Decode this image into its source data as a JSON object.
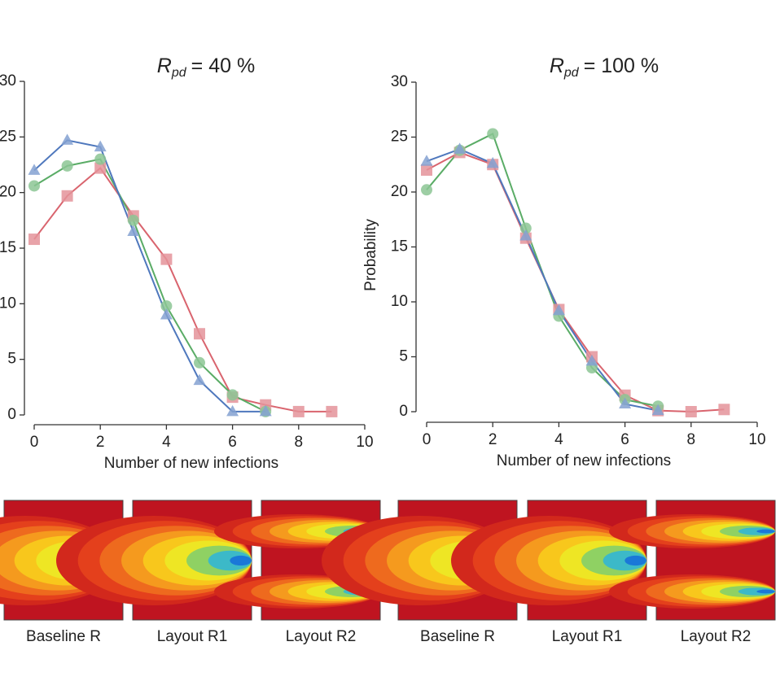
{
  "chart_data": [
    {
      "type": "line",
      "title": {
        "symbol": "R",
        "subscript": "pd",
        "rest": "= 40 %"
      },
      "xlabel": "Number of new infections",
      "xlim": [
        0,
        10
      ],
      "xticks": [
        0,
        2,
        4,
        6,
        8,
        10
      ],
      "ylim": [
        0,
        30
      ],
      "yticks": [
        0,
        5,
        10,
        15,
        20,
        25,
        30
      ],
      "series": [
        {
          "color": "#d9646e",
          "marker": "square",
          "x": [
            0,
            1,
            2,
            3,
            4,
            5,
            6,
            7,
            8,
            9
          ],
          "values": [
            15.8,
            19.7,
            22.2,
            17.9,
            14,
            7.3,
            1.6,
            0.9,
            0.3,
            0.3
          ]
        },
        {
          "color": "#5aac66",
          "marker": "circle",
          "x": [
            0,
            1,
            2,
            3,
            4,
            5,
            6,
            7
          ],
          "values": [
            20.6,
            22.4,
            23,
            17.5,
            9.8,
            4.7,
            1.8,
            0.3
          ]
        },
        {
          "color": "#4f78bd",
          "marker": "triangle",
          "x": [
            0,
            1,
            2,
            3,
            4,
            5,
            6,
            7
          ],
          "values": [
            22,
            24.7,
            24.1,
            16.5,
            9,
            3.1,
            0.3,
            0.3
          ]
        }
      ]
    },
    {
      "type": "line",
      "title": {
        "symbol": "R",
        "subscript": "pd",
        "rest": "= 100 %"
      },
      "xlabel": "Number of new infections",
      "ylabel": "Probability",
      "xlim": [
        0,
        10
      ],
      "xticks": [
        0,
        2,
        4,
        6,
        8,
        10
      ],
      "ylim": [
        0,
        30
      ],
      "yticks": [
        0,
        5,
        10,
        15,
        20,
        25,
        30
      ],
      "series": [
        {
          "color": "#d9646e",
          "marker": "square",
          "x": [
            0,
            1,
            2,
            3,
            4,
            5,
            6,
            7,
            8,
            9
          ],
          "values": [
            22,
            23.6,
            22.5,
            15.8,
            9.3,
            5,
            1.5,
            0.1,
            0,
            0.2
          ]
        },
        {
          "color": "#5aac66",
          "marker": "circle",
          "x": [
            0,
            1,
            2,
            3,
            4,
            5,
            6,
            7
          ],
          "values": [
            20.2,
            23.8,
            25.3,
            16.7,
            8.7,
            4,
            1.1,
            0.5
          ]
        },
        {
          "color": "#4f78bd",
          "marker": "triangle",
          "x": [
            0,
            1,
            2,
            3,
            4,
            5,
            6,
            7
          ],
          "values": [
            22.8,
            23.9,
            22.6,
            16,
            9.2,
            4.6,
            0.7,
            0.1
          ]
        }
      ]
    }
  ],
  "panels": [
    {
      "label": "Baseline R",
      "plumes": 1
    },
    {
      "label": "Layout R1",
      "plumes": 1
    },
    {
      "label": "Layout R2",
      "plumes": 2
    },
    {
      "label": "Baseline R",
      "plumes": 1
    },
    {
      "label": "Layout R1",
      "plumes": 1
    },
    {
      "label": "Layout R2",
      "plumes": 2
    }
  ]
}
